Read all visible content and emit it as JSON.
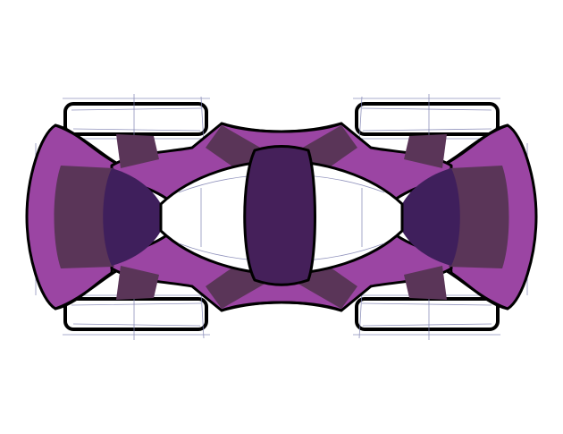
{
  "scene": {
    "subject": "top-view-car-sketch",
    "colors": {
      "background": "#ffffff",
      "outline": "#000000",
      "body_magenta": "#9b45a3",
      "panel_plum": "#5a3558",
      "cabin_indigo": "#3f1f5c",
      "roof_purple": "#45205a",
      "sketch_lines": "#7c7fb0",
      "tire_fill": "#ffffff"
    }
  }
}
